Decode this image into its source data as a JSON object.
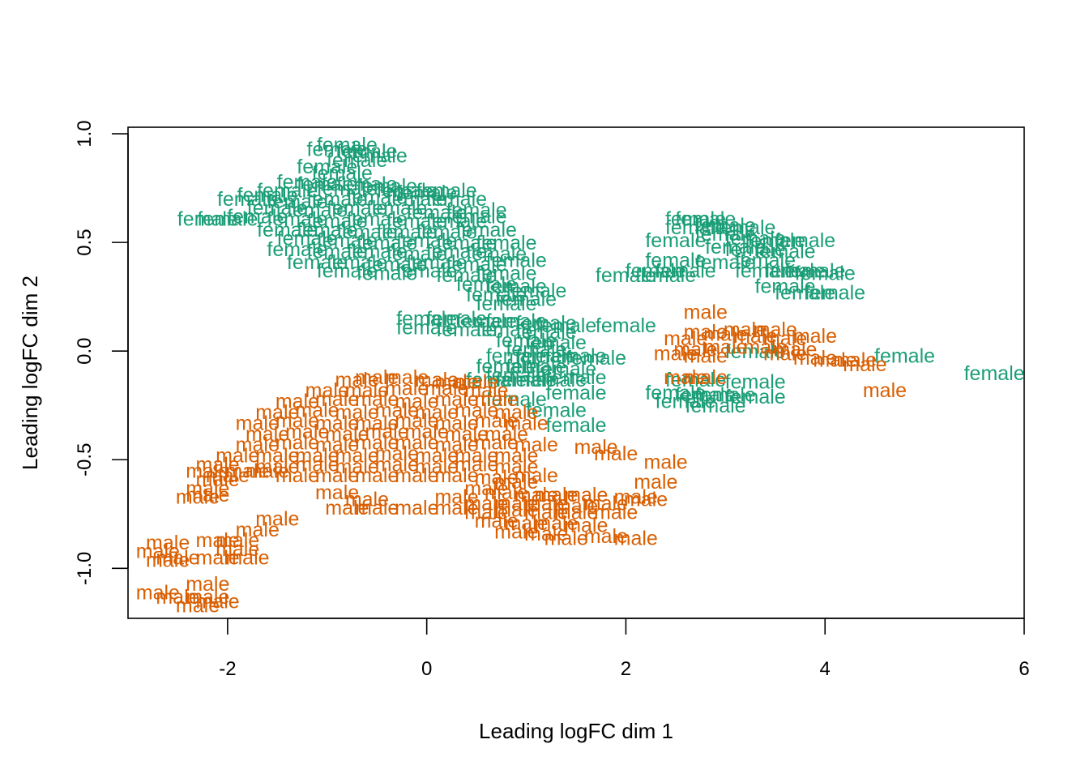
{
  "chart_data": {
    "type": "scatter",
    "title": "",
    "xlabel": "Leading logFC dim 1",
    "ylabel": "Leading logFC dim 2",
    "xlim": [
      -3.0,
      6.0
    ],
    "ylim": [
      -1.23,
      1.03
    ],
    "xticks": [
      -2,
      0,
      2,
      4,
      6
    ],
    "yticks": [
      -1.0,
      -0.5,
      0.0,
      0.5,
      1.0
    ],
    "xtick_labels": [
      "-2",
      "0",
      "2",
      "4",
      "6"
    ],
    "ytick_labels": [
      "-1.0",
      "-0.5",
      "0.0",
      "0.5",
      "1.0"
    ],
    "grid": false,
    "legend": "none",
    "marker": "text label",
    "series": [
      {
        "label": "female",
        "color": "#1B9E77",
        "points": [
          [
            -0.9,
            0.93
          ],
          [
            -0.8,
            0.95
          ],
          [
            -0.6,
            0.92
          ],
          [
            -0.7,
            0.88
          ],
          [
            -1.0,
            0.85
          ],
          [
            -0.85,
            0.82
          ],
          [
            -0.5,
            0.9
          ],
          [
            -1.6,
            0.72
          ],
          [
            -1.4,
            0.74
          ],
          [
            -1.2,
            0.78
          ],
          [
            -1.0,
            0.77
          ],
          [
            -0.8,
            0.75
          ],
          [
            -0.6,
            0.77
          ],
          [
            -0.4,
            0.76
          ],
          [
            -0.2,
            0.74
          ],
          [
            0.0,
            0.73
          ],
          [
            0.2,
            0.74
          ],
          [
            -1.8,
            0.7
          ],
          [
            -1.3,
            0.69
          ],
          [
            -0.9,
            0.7
          ],
          [
            -0.5,
            0.71
          ],
          [
            -0.1,
            0.7
          ],
          [
            0.3,
            0.7
          ],
          [
            -1.5,
            0.66
          ],
          [
            -1.1,
            0.65
          ],
          [
            -0.7,
            0.66
          ],
          [
            -0.3,
            0.66
          ],
          [
            0.1,
            0.64
          ],
          [
            0.5,
            0.65
          ],
          [
            -2.2,
            0.61
          ],
          [
            -2.0,
            0.61
          ],
          [
            -1.7,
            0.62
          ],
          [
            -1.3,
            0.61
          ],
          [
            -0.9,
            0.6
          ],
          [
            -0.5,
            0.61
          ],
          [
            -0.1,
            0.6
          ],
          [
            0.3,
            0.6
          ],
          [
            0.5,
            0.62
          ],
          [
            -1.4,
            0.56
          ],
          [
            -1.0,
            0.56
          ],
          [
            -0.6,
            0.55
          ],
          [
            -0.2,
            0.55
          ],
          [
            0.2,
            0.55
          ],
          [
            0.6,
            0.56
          ],
          [
            -1.2,
            0.52
          ],
          [
            -0.8,
            0.51
          ],
          [
            -0.4,
            0.5
          ],
          [
            0.0,
            0.51
          ],
          [
            0.4,
            0.5
          ],
          [
            0.8,
            0.5
          ],
          [
            -1.3,
            0.47
          ],
          [
            -0.9,
            0.46
          ],
          [
            -0.5,
            0.46
          ],
          [
            -0.1,
            0.45
          ],
          [
            0.3,
            0.46
          ],
          [
            0.7,
            0.45
          ],
          [
            -1.1,
            0.41
          ],
          [
            -0.7,
            0.41
          ],
          [
            -0.3,
            0.4
          ],
          [
            0.1,
            0.41
          ],
          [
            0.5,
            0.4
          ],
          [
            0.9,
            0.42
          ],
          [
            -0.8,
            0.37
          ],
          [
            -0.4,
            0.36
          ],
          [
            0.0,
            0.37
          ],
          [
            0.4,
            0.35
          ],
          [
            0.8,
            0.36
          ],
          [
            0.6,
            0.31
          ],
          [
            0.9,
            0.3
          ],
          [
            1.1,
            0.28
          ],
          [
            0.7,
            0.26
          ],
          [
            1.0,
            0.24
          ],
          [
            0.8,
            0.22
          ],
          [
            0.0,
            0.15
          ],
          [
            0.3,
            0.15
          ],
          [
            0.6,
            0.14
          ],
          [
            0.9,
            0.14
          ],
          [
            1.2,
            0.13
          ],
          [
            1.4,
            0.12
          ],
          [
            0.0,
            0.11
          ],
          [
            0.4,
            0.1
          ],
          [
            0.8,
            0.1
          ],
          [
            1.2,
            0.09
          ],
          [
            1.0,
            0.05
          ],
          [
            1.3,
            0.04
          ],
          [
            1.1,
            0.01
          ],
          [
            0.9,
            -0.02
          ],
          [
            1.2,
            -0.02
          ],
          [
            1.5,
            -0.02
          ],
          [
            1.7,
            -0.03
          ],
          [
            0.8,
            -0.07
          ],
          [
            1.1,
            -0.07
          ],
          [
            1.4,
            -0.08
          ],
          [
            0.9,
            -0.11
          ],
          [
            0.7,
            -0.13
          ],
          [
            1.0,
            -0.13
          ],
          [
            1.3,
            -0.13
          ],
          [
            1.5,
            -0.12
          ],
          [
            0.9,
            -0.22
          ],
          [
            1.5,
            -0.19
          ],
          [
            1.3,
            -0.27
          ],
          [
            1.5,
            -0.34
          ],
          [
            2.0,
            0.12
          ],
          [
            2.7,
            0.61
          ],
          [
            2.8,
            0.61
          ],
          [
            3.0,
            0.58
          ],
          [
            3.2,
            0.57
          ],
          [
            2.7,
            0.57
          ],
          [
            3.0,
            0.54
          ],
          [
            3.3,
            0.52
          ],
          [
            3.5,
            0.51
          ],
          [
            3.8,
            0.51
          ],
          [
            2.5,
            0.51
          ],
          [
            3.1,
            0.48
          ],
          [
            3.3,
            0.47
          ],
          [
            3.6,
            0.46
          ],
          [
            2.5,
            0.42
          ],
          [
            3.0,
            0.41
          ],
          [
            3.4,
            0.42
          ],
          [
            2.3,
            0.37
          ],
          [
            2.6,
            0.37
          ],
          [
            3.4,
            0.37
          ],
          [
            3.7,
            0.37
          ],
          [
            3.9,
            0.37
          ],
          [
            4.0,
            0.36
          ],
          [
            2.0,
            0.35
          ],
          [
            2.4,
            0.35
          ],
          [
            3.6,
            0.3
          ],
          [
            3.8,
            0.27
          ],
          [
            4.1,
            0.27
          ],
          [
            3.3,
            0.0
          ],
          [
            4.8,
            -0.02
          ],
          [
            5.7,
            -0.1
          ],
          [
            2.7,
            -0.13
          ],
          [
            3.3,
            -0.14
          ],
          [
            2.5,
            -0.19
          ],
          [
            2.8,
            -0.2
          ],
          [
            3.0,
            -0.2
          ],
          [
            3.3,
            -0.21
          ],
          [
            2.6,
            -0.23
          ],
          [
            2.9,
            -0.25
          ]
        ]
      },
      {
        "label": "male",
        "color": "#D95F02",
        "points": [
          [
            2.8,
            0.18
          ],
          [
            3.2,
            0.1
          ],
          [
            3.5,
            0.1
          ],
          [
            2.8,
            0.09
          ],
          [
            3.0,
            0.08
          ],
          [
            3.3,
            0.07
          ],
          [
            2.6,
            0.06
          ],
          [
            3.6,
            0.06
          ],
          [
            3.9,
            0.07
          ],
          [
            2.7,
            0.01
          ],
          [
            3.0,
            0.02
          ],
          [
            3.4,
            0.02
          ],
          [
            3.7,
            0.01
          ],
          [
            2.5,
            -0.01
          ],
          [
            2.8,
            -0.02
          ],
          [
            3.6,
            -0.01
          ],
          [
            3.9,
            -0.03
          ],
          [
            4.1,
            -0.04
          ],
          [
            4.3,
            -0.04
          ],
          [
            4.4,
            -0.06
          ],
          [
            2.6,
            -0.12
          ],
          [
            2.8,
            -0.12
          ],
          [
            4.6,
            -0.18
          ],
          [
            -0.7,
            -0.13
          ],
          [
            -0.5,
            -0.12
          ],
          [
            -0.2,
            -0.12
          ],
          [
            0.1,
            -0.13
          ],
          [
            0.3,
            -0.14
          ],
          [
            0.5,
            -0.14
          ],
          [
            -1.0,
            -0.18
          ],
          [
            -0.6,
            -0.18
          ],
          [
            -0.2,
            -0.17
          ],
          [
            0.2,
            -0.17
          ],
          [
            0.6,
            -0.18
          ],
          [
            -1.3,
            -0.23
          ],
          [
            -0.9,
            -0.22
          ],
          [
            -0.5,
            -0.22
          ],
          [
            -0.1,
            -0.23
          ],
          [
            0.3,
            -0.22
          ],
          [
            0.7,
            -0.22
          ],
          [
            -1.5,
            -0.28
          ],
          [
            -1.1,
            -0.27
          ],
          [
            -0.7,
            -0.28
          ],
          [
            -0.3,
            -0.27
          ],
          [
            0.1,
            -0.28
          ],
          [
            0.5,
            -0.27
          ],
          [
            0.9,
            -0.28
          ],
          [
            -1.7,
            -0.33
          ],
          [
            -1.3,
            -0.32
          ],
          [
            -0.9,
            -0.33
          ],
          [
            -0.5,
            -0.33
          ],
          [
            -0.1,
            -0.32
          ],
          [
            0.3,
            -0.33
          ],
          [
            0.7,
            -0.32
          ],
          [
            1.0,
            -0.33
          ],
          [
            -1.6,
            -0.38
          ],
          [
            -1.2,
            -0.37
          ],
          [
            -0.8,
            -0.38
          ],
          [
            -0.4,
            -0.37
          ],
          [
            0.0,
            -0.37
          ],
          [
            0.4,
            -0.38
          ],
          [
            0.8,
            -0.38
          ],
          [
            -1.7,
            -0.43
          ],
          [
            -1.3,
            -0.42
          ],
          [
            -0.9,
            -0.43
          ],
          [
            -0.5,
            -0.42
          ],
          [
            -0.1,
            -0.42
          ],
          [
            0.3,
            -0.43
          ],
          [
            0.7,
            -0.42
          ],
          [
            1.1,
            -0.43
          ],
          [
            -1.9,
            -0.48
          ],
          [
            -1.5,
            -0.48
          ],
          [
            -1.1,
            -0.48
          ],
          [
            -0.7,
            -0.48
          ],
          [
            -0.3,
            -0.47
          ],
          [
            0.1,
            -0.48
          ],
          [
            0.5,
            -0.48
          ],
          [
            0.9,
            -0.48
          ],
          [
            -1.5,
            -0.53
          ],
          [
            -1.1,
            -0.52
          ],
          [
            -0.7,
            -0.53
          ],
          [
            -0.3,
            -0.52
          ],
          [
            0.1,
            -0.53
          ],
          [
            0.5,
            -0.52
          ],
          [
            0.9,
            -0.53
          ],
          [
            -1.3,
            -0.57
          ],
          [
            -0.9,
            -0.57
          ],
          [
            -0.5,
            -0.57
          ],
          [
            -0.1,
            -0.57
          ],
          [
            0.3,
            -0.57
          ],
          [
            0.7,
            -0.58
          ],
          [
            -2.1,
            -0.52
          ],
          [
            -2.2,
            -0.55
          ],
          [
            -2.1,
            -0.59
          ],
          [
            -2.2,
            -0.63
          ],
          [
            -2.2,
            -0.66
          ],
          [
            -2.3,
            -0.67
          ],
          [
            -2.0,
            -0.57
          ],
          [
            -1.8,
            -0.55
          ],
          [
            -1.6,
            -0.55
          ],
          [
            1.7,
            -0.44
          ],
          [
            1.9,
            -0.47
          ],
          [
            2.4,
            -0.51
          ],
          [
            2.3,
            -0.6
          ],
          [
            1.1,
            -0.57
          ],
          [
            0.9,
            -0.6
          ],
          [
            0.6,
            -0.63
          ],
          [
            0.8,
            -0.65
          ],
          [
            1.1,
            -0.66
          ],
          [
            1.3,
            -0.66
          ],
          [
            1.6,
            -0.66
          ],
          [
            0.3,
            -0.67
          ],
          [
            0.6,
            -0.7
          ],
          [
            0.9,
            -0.7
          ],
          [
            1.2,
            -0.7
          ],
          [
            1.5,
            -0.71
          ],
          [
            1.8,
            -0.7
          ],
          [
            2.1,
            -0.67
          ],
          [
            2.2,
            -0.68
          ],
          [
            0.3,
            -0.72
          ],
          [
            0.6,
            -0.74
          ],
          [
            0.9,
            -0.73
          ],
          [
            1.2,
            -0.74
          ],
          [
            1.5,
            -0.74
          ],
          [
            1.9,
            -0.74
          ],
          [
            0.7,
            -0.78
          ],
          [
            1.0,
            -0.79
          ],
          [
            1.3,
            -0.79
          ],
          [
            1.6,
            -0.8
          ],
          [
            0.9,
            -0.83
          ],
          [
            1.2,
            -0.84
          ],
          [
            1.4,
            -0.86
          ],
          [
            1.8,
            -0.85
          ],
          [
            2.1,
            -0.86
          ],
          [
            -0.9,
            -0.65
          ],
          [
            -0.6,
            -0.68
          ],
          [
            -0.8,
            -0.72
          ],
          [
            -0.5,
            -0.72
          ],
          [
            -0.1,
            -0.72
          ],
          [
            -1.5,
            -0.77
          ],
          [
            -1.7,
            -0.82
          ],
          [
            -1.9,
            -0.87
          ],
          [
            -2.6,
            -0.88
          ],
          [
            -2.1,
            -0.87
          ],
          [
            -1.9,
            -0.91
          ],
          [
            -2.7,
            -0.92
          ],
          [
            -2.5,
            -0.95
          ],
          [
            -2.1,
            -0.95
          ],
          [
            -1.8,
            -0.95
          ],
          [
            -2.6,
            -0.96
          ],
          [
            -2.2,
            -1.07
          ],
          [
            -2.7,
            -1.11
          ],
          [
            -2.5,
            -1.13
          ],
          [
            -2.2,
            -1.13
          ],
          [
            -2.1,
            -1.15
          ],
          [
            -2.3,
            -1.17
          ]
        ]
      }
    ]
  }
}
